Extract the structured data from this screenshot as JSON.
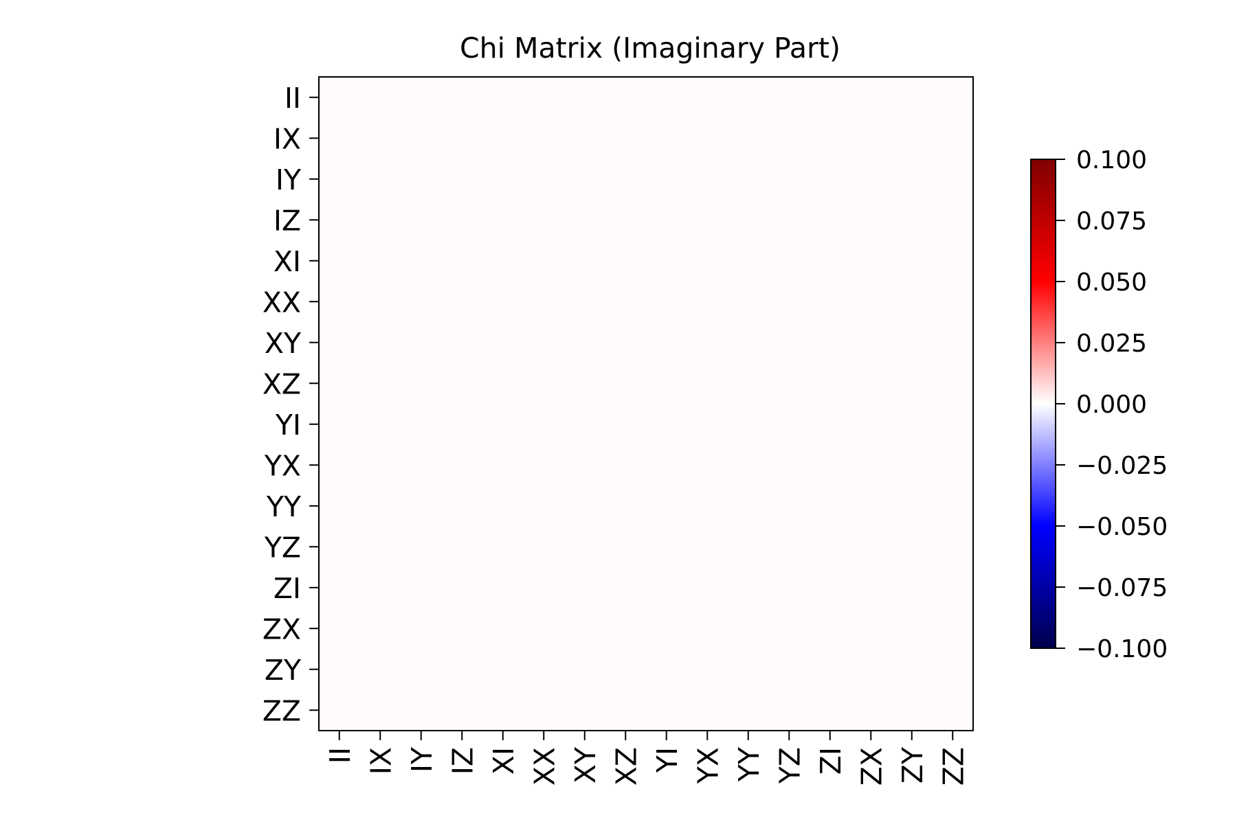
{
  "chart_data": {
    "type": "heatmap",
    "title": "Chi Matrix (Imaginary Part)",
    "xlabel": "",
    "ylabel": "",
    "x_tick_labels": [
      "II",
      "IX",
      "IY",
      "IZ",
      "XI",
      "XX",
      "XY",
      "XZ",
      "YI",
      "YX",
      "YY",
      "YZ",
      "ZI",
      "ZX",
      "ZY",
      "ZZ"
    ],
    "y_tick_labels": [
      "II",
      "IX",
      "IY",
      "IZ",
      "XI",
      "XX",
      "XY",
      "XZ",
      "YI",
      "YX",
      "YY",
      "YZ",
      "ZI",
      "ZX",
      "ZY",
      "ZZ"
    ],
    "values": [
      [
        0,
        0,
        0,
        0,
        0,
        0,
        0,
        0,
        0,
        0,
        0,
        0,
        0,
        0,
        0,
        0
      ],
      [
        0,
        0,
        0,
        0,
        0,
        0,
        0,
        0,
        0,
        0,
        0,
        0,
        0,
        0,
        0,
        0
      ],
      [
        0,
        0,
        0,
        0,
        0,
        0,
        0,
        0,
        0,
        0,
        0,
        0,
        0,
        0,
        0,
        0
      ],
      [
        0,
        0,
        0,
        0,
        0,
        0,
        0,
        0,
        0,
        0,
        0,
        0,
        0,
        0,
        0,
        0
      ],
      [
        0,
        0,
        0,
        0,
        0,
        0,
        0,
        0,
        0,
        0,
        0,
        0,
        0,
        0,
        0,
        0
      ],
      [
        0,
        0,
        0,
        0,
        0,
        0,
        0,
        0,
        0,
        0,
        0,
        0,
        0,
        0,
        0,
        0
      ],
      [
        0,
        0,
        0,
        0,
        0,
        0,
        0,
        0,
        0,
        0,
        0,
        0,
        0,
        0,
        0,
        0
      ],
      [
        0,
        0,
        0,
        0,
        0,
        0,
        0,
        0,
        0,
        0,
        0,
        0,
        0,
        0,
        0,
        0
      ],
      [
        0,
        0,
        0,
        0,
        0,
        0,
        0,
        0,
        0,
        0,
        0,
        0,
        0,
        0,
        0,
        0
      ],
      [
        0,
        0,
        0,
        0,
        0,
        0,
        0,
        0,
        0,
        0,
        0,
        0,
        0,
        0,
        0,
        0
      ],
      [
        0,
        0,
        0,
        0,
        0,
        0,
        0,
        0,
        0,
        0,
        0,
        0,
        0,
        0,
        0,
        0
      ],
      [
        0,
        0,
        0,
        0,
        0,
        0,
        0,
        0,
        0,
        0,
        0,
        0,
        0,
        0,
        0,
        0
      ],
      [
        0,
        0,
        0,
        0,
        0,
        0,
        0,
        0,
        0,
        0,
        0,
        0,
        0,
        0,
        0,
        0
      ],
      [
        0,
        0,
        0,
        0,
        0,
        0,
        0,
        0,
        0,
        0,
        0,
        0,
        0,
        0,
        0,
        0
      ],
      [
        0,
        0,
        0,
        0,
        0,
        0,
        0,
        0,
        0,
        0,
        0,
        0,
        0,
        0,
        0,
        0
      ],
      [
        0,
        0,
        0,
        0,
        0,
        0,
        0,
        0,
        0,
        0,
        0,
        0,
        0,
        0,
        0,
        0
      ]
    ],
    "colorbar": {
      "range": [
        -0.1,
        0.1
      ],
      "tick_values": [
        0.1,
        0.075,
        0.05,
        0.025,
        0.0,
        -0.025,
        -0.05,
        -0.075,
        -0.1
      ],
      "tick_labels": [
        "0.100",
        "0.075",
        "0.050",
        "0.025",
        "0.000",
        "−0.025",
        "−0.050",
        "−0.075",
        "−0.100"
      ],
      "colormap": "seismic",
      "colormap_stops": [
        "#00004c",
        "#0000ff",
        "#ffffff",
        "#ff0000",
        "#7f0000"
      ]
    },
    "grid": false,
    "cell_color": "#fffafd"
  }
}
